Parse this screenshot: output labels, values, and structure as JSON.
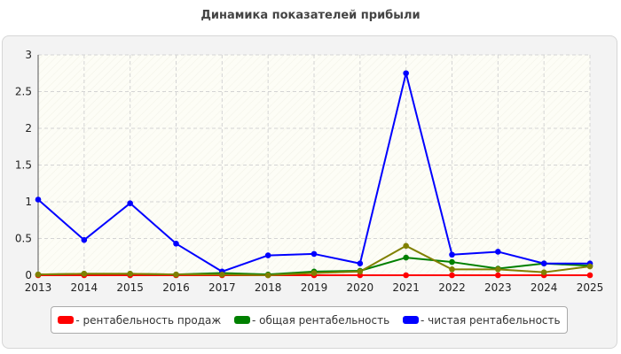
{
  "chart_data": {
    "type": "line",
    "title": "Динамика показателей прибыли",
    "xlabel": "",
    "ylabel": "",
    "x": [
      "2013",
      "2014",
      "2015",
      "2016",
      "2017",
      "2018",
      "2019",
      "2020",
      "2021",
      "2022",
      "2023",
      "2024",
      "2025"
    ],
    "y_ticks": [
      "0",
      "0.5",
      "1",
      "1.5",
      "2",
      "2.5",
      "3"
    ],
    "ylim": [
      0,
      3
    ],
    "grid": true,
    "legend_position": "bottom",
    "series": [
      {
        "name": "- рентабельность продаж",
        "color": "#ff0000",
        "values": [
          0,
          0,
          0,
          0,
          0,
          0,
          0,
          0,
          0,
          0,
          0,
          0,
          0
        ]
      },
      {
        "name": "- общая рентабельность",
        "color": "#008000",
        "values": [
          0.01,
          0.02,
          0.02,
          0.01,
          0.03,
          0.01,
          0.05,
          0.06,
          0.24,
          0.18,
          0.09,
          0.16,
          0.13
        ]
      },
      {
        "name": "- чистая рентабельность",
        "color": "#0000ff",
        "values": [
          1.03,
          0.48,
          0.98,
          0.43,
          0.05,
          0.27,
          0.29,
          0.16,
          2.75,
          0.28,
          0.32,
          0.16,
          0.16
        ]
      },
      {
        "color": "#808000",
        "values": [
          0.01,
          0.02,
          0.02,
          0.01,
          0.01,
          0.0,
          0.03,
          0.05,
          0.4,
          0.08,
          0.08,
          0.04,
          0.12
        ]
      }
    ]
  }
}
